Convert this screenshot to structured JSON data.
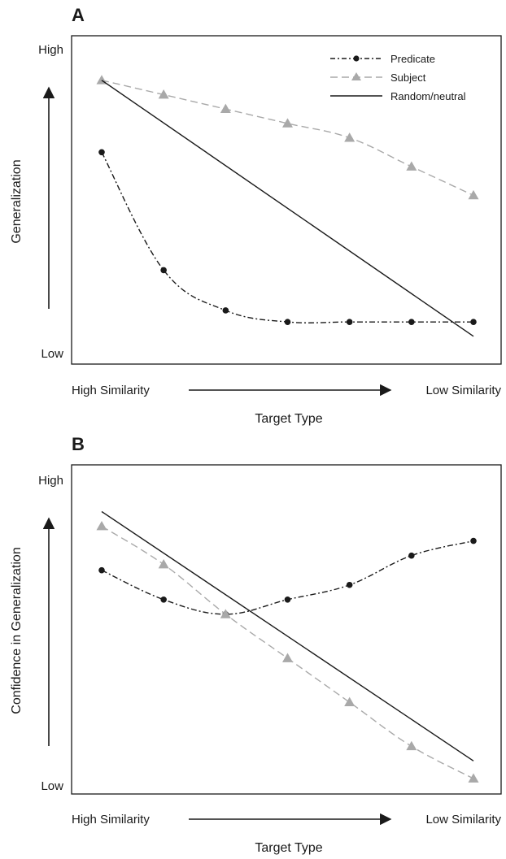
{
  "colors": {
    "predicate": "#1a1a1a",
    "subject": "#a9a9a9",
    "random": "#1a1a1a",
    "axis": "#1a1a1a"
  },
  "legend": {
    "predicate": "Predicate",
    "subject": "Subject",
    "random": "Random/neutral",
    "placement": "top-right"
  },
  "chart_data": [
    {
      "type": "line",
      "panel_label": "A",
      "ylabel": "Generalization",
      "xlabel": "Target Type",
      "y_high_label": "High",
      "y_low_label": "Low",
      "x_left_label": "High Similarity",
      "x_right_label": "Low Similarity",
      "x": [
        1,
        2,
        3,
        4,
        5,
        6,
        7
      ],
      "ylim": [
        0,
        100
      ],
      "legend": true,
      "series": [
        {
          "name": "Predicate",
          "key": "predicate",
          "marker": "circle",
          "values": [
            68,
            27,
            13,
            9,
            9,
            9,
            9
          ]
        },
        {
          "name": "Subject",
          "key": "subject",
          "marker": "triangle",
          "values": [
            93,
            88,
            83,
            78,
            73,
            63,
            53
          ]
        },
        {
          "name": "Random/neutral",
          "key": "random",
          "marker": "none",
          "line": {
            "x": [
              1,
              7.0
            ],
            "y": [
              93,
              4
            ]
          }
        }
      ]
    },
    {
      "type": "line",
      "panel_label": "B",
      "ylabel": "Confidence in Generalization",
      "xlabel": "Target Type",
      "y_high_label": "High",
      "y_low_label": "Low",
      "x_left_label": "High Similarity",
      "x_right_label": "Low Similarity",
      "x": [
        1,
        2,
        3,
        4,
        5,
        6,
        7
      ],
      "ylim": [
        0,
        100
      ],
      "legend": false,
      "series": [
        {
          "name": "Predicate",
          "key": "predicate",
          "marker": "circle",
          "values": [
            71,
            61,
            56,
            61,
            66,
            76,
            81
          ]
        },
        {
          "name": "Subject",
          "key": "subject",
          "marker": "triangle",
          "values": [
            86,
            73,
            56,
            41,
            26,
            11,
            0
          ]
        },
        {
          "name": "Random/neutral",
          "key": "random",
          "marker": "none",
          "line": {
            "x": [
              1,
              7.0
            ],
            "y": [
              91,
              6
            ]
          }
        }
      ]
    }
  ]
}
